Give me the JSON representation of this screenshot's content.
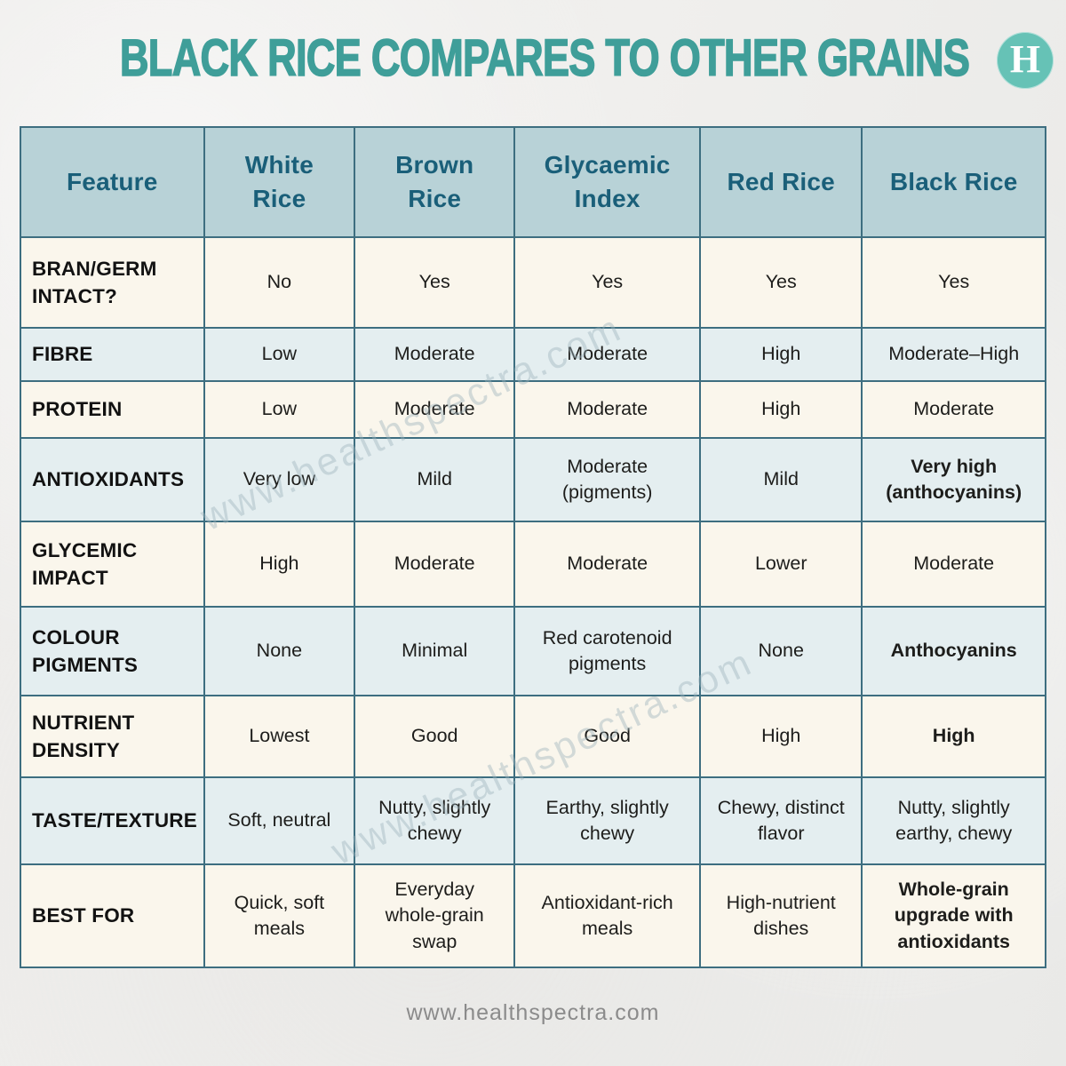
{
  "header": {
    "title": "BLACK RICE COMPARES TO OTHER GRAINS",
    "logo_letter": "H"
  },
  "watermark": {
    "text": "www.healthspectra.com"
  },
  "footer": {
    "text": "www.healthspectra.com"
  },
  "colors": {
    "title": "#3f9e99",
    "logo_bg": "#66c2b6",
    "header_bg": "#b8d2d7",
    "header_text": "#1a5f79",
    "border": "#3d6e80",
    "row_cream": "#faf6ec",
    "row_blue": "#e4eef0",
    "cell_text": "#1d1d1b",
    "footer_text": "#8b8b8b",
    "watermark": "#9db3bc"
  },
  "chart_data": {
    "type": "table",
    "title": "BLACK RICE COMPARES TO OTHER GRAINS",
    "columns": [
      "Feature",
      "White Rice",
      "Brown Rice",
      "Glycaemic Index",
      "Red Rice",
      "Black Rice"
    ],
    "rows": [
      {
        "feature": "BRAN/GERM INTACT?",
        "cells": [
          {
            "text": "No"
          },
          {
            "text": "Yes"
          },
          {
            "text": "Yes"
          },
          {
            "text": "Yes"
          },
          {
            "text": "Yes"
          }
        ]
      },
      {
        "feature": "FIBRE",
        "cells": [
          {
            "text": "Low"
          },
          {
            "text": "Moderate"
          },
          {
            "text": "Moderate"
          },
          {
            "text": "High"
          },
          {
            "text": "Moderate–High"
          }
        ]
      },
      {
        "feature": "PROTEIN",
        "cells": [
          {
            "text": "Low"
          },
          {
            "text": "Moderate"
          },
          {
            "text": "Moderate"
          },
          {
            "text": "High"
          },
          {
            "text": "Moderate"
          }
        ]
      },
      {
        "feature": "ANTIOXIDANTS",
        "cells": [
          {
            "text": "Very low"
          },
          {
            "text": "Mild"
          },
          {
            "text": "Moderate (pigments)"
          },
          {
            "text": "Mild"
          },
          {
            "text": "Very high (anthocyanins)",
            "bold": true
          }
        ]
      },
      {
        "feature": "GLYCEMIC IMPACT",
        "cells": [
          {
            "text": "High"
          },
          {
            "text": "Moderate"
          },
          {
            "text": "Moderate"
          },
          {
            "text": "Lower"
          },
          {
            "text": "Moderate"
          }
        ]
      },
      {
        "feature": "COLOUR PIGMENTS",
        "cells": [
          {
            "text": "None"
          },
          {
            "text": "Minimal"
          },
          {
            "text": "Red carotenoid pigments"
          },
          {
            "text": "None"
          },
          {
            "text": "Anthocyanins",
            "bold": true
          }
        ]
      },
      {
        "feature": "NUTRIENT DENSITY",
        "cells": [
          {
            "text": "Lowest"
          },
          {
            "text": "Good"
          },
          {
            "text": "Good"
          },
          {
            "text": "High"
          },
          {
            "text": "High",
            "bold": true
          }
        ]
      },
      {
        "feature": "TASTE/TEXTURE",
        "cells": [
          {
            "text": "Soft, neutral"
          },
          {
            "text": "Nutty, slightly chewy"
          },
          {
            "text": "Earthy, slightly chewy"
          },
          {
            "text": "Chewy, distinct flavor"
          },
          {
            "text": "Nutty, slightly earthy, chewy"
          }
        ]
      },
      {
        "feature": "BEST FOR",
        "cells": [
          {
            "text": "Quick, soft meals"
          },
          {
            "text": "Everyday whole-grain swap"
          },
          {
            "text": "Antioxidant-rich meals"
          },
          {
            "text": "High-nutrient dishes"
          },
          {
            "text": "Whole-grain upgrade with antioxidants",
            "bold": true
          }
        ]
      }
    ]
  }
}
